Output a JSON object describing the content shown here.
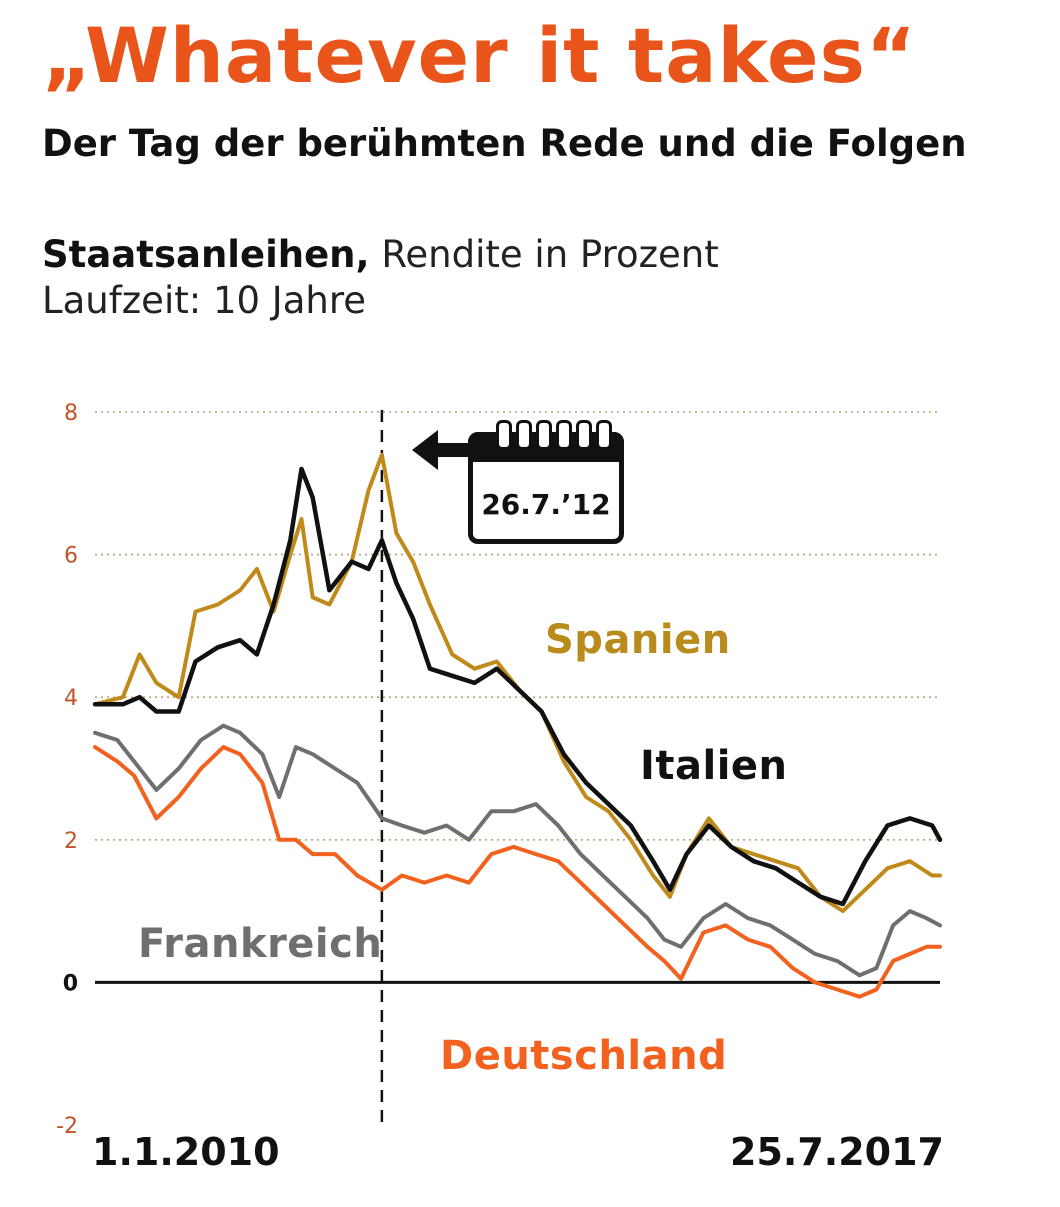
{
  "title": "„Whatever it takes“",
  "subtitle": "Der Tag der berühmten Rede und die Folgen",
  "metric": {
    "bold": "Staatsanleihen,",
    "normal": " Rendite in Prozent",
    "line2": "Laufzeit: 10 Jahre"
  },
  "callout": {
    "date": "26.7.’12",
    "icon": "calendar-icon"
  },
  "colors": {
    "title": "#e8541a",
    "spanien": "#c08a1a",
    "italien": "#111111",
    "frankreich": "#6f6f6f",
    "deutschland": "#f2621e",
    "grid": "#b9a57a"
  },
  "chart_data": {
    "type": "line",
    "title": "Staatsanleihen, Rendite in Prozent",
    "x_start": "1.1.2010",
    "x_end": "25.7.2017",
    "ylim": [
      -2,
      8
    ],
    "yticks": [
      8,
      6,
      4,
      2,
      0,
      -2
    ],
    "grid": true,
    "marker_date": "26.7.’12",
    "marker_x": 2012.57,
    "series": [
      {
        "name": "Spanien",
        "color": "#c08a1a",
        "x": [
          2010.0,
          2010.25,
          2010.4,
          2010.55,
          2010.75,
          2010.9,
          2011.1,
          2011.3,
          2011.45,
          2011.6,
          2011.75,
          2011.85,
          2011.95,
          2012.1,
          2012.3,
          2012.45,
          2012.57,
          2012.7,
          2012.85,
          2013.0,
          2013.2,
          2013.4,
          2013.6,
          2013.8,
          2014.0,
          2014.2,
          2014.4,
          2014.6,
          2014.8,
          2015.0,
          2015.15,
          2015.3,
          2015.5,
          2015.7,
          2015.9,
          2016.1,
          2016.3,
          2016.5,
          2016.7,
          2016.9,
          2017.1,
          2017.3,
          2017.5,
          2017.57
        ],
        "values": [
          3.9,
          4.0,
          4.6,
          4.2,
          4.0,
          5.2,
          5.3,
          5.5,
          5.8,
          5.2,
          6.0,
          6.5,
          5.4,
          5.3,
          5.9,
          6.9,
          7.4,
          6.3,
          5.9,
          5.3,
          4.6,
          4.4,
          4.5,
          4.1,
          3.8,
          3.1,
          2.6,
          2.4,
          2.0,
          1.5,
          1.2,
          1.8,
          2.3,
          1.9,
          1.8,
          1.7,
          1.6,
          1.2,
          1.0,
          1.3,
          1.6,
          1.7,
          1.5,
          1.5
        ]
      },
      {
        "name": "Italien",
        "color": "#111111",
        "x": [
          2010.0,
          2010.25,
          2010.4,
          2010.55,
          2010.75,
          2010.9,
          2011.1,
          2011.3,
          2011.45,
          2011.6,
          2011.75,
          2011.85,
          2011.95,
          2012.1,
          2012.3,
          2012.45,
          2012.57,
          2012.7,
          2012.85,
          2013.0,
          2013.2,
          2013.4,
          2013.6,
          2013.8,
          2014.0,
          2014.2,
          2014.4,
          2014.6,
          2014.8,
          2015.0,
          2015.15,
          2015.3,
          2015.5,
          2015.7,
          2015.9,
          2016.1,
          2016.3,
          2016.5,
          2016.7,
          2016.9,
          2017.1,
          2017.3,
          2017.5,
          2017.57
        ],
        "values": [
          3.9,
          3.9,
          4.0,
          3.8,
          3.8,
          4.5,
          4.7,
          4.8,
          4.6,
          5.3,
          6.2,
          7.2,
          6.8,
          5.5,
          5.9,
          5.8,
          6.2,
          5.6,
          5.1,
          4.4,
          4.3,
          4.2,
          4.4,
          4.1,
          3.8,
          3.2,
          2.8,
          2.5,
          2.2,
          1.7,
          1.3,
          1.8,
          2.2,
          1.9,
          1.7,
          1.6,
          1.4,
          1.2,
          1.1,
          1.7,
          2.2,
          2.3,
          2.2,
          2.0
        ]
      },
      {
        "name": "Frankreich",
        "color": "#6f6f6f",
        "x": [
          2010.0,
          2010.2,
          2010.35,
          2010.55,
          2010.75,
          2010.95,
          2011.15,
          2011.3,
          2011.5,
          2011.65,
          2011.8,
          2011.95,
          2012.15,
          2012.35,
          2012.57,
          2012.75,
          2012.95,
          2013.15,
          2013.35,
          2013.55,
          2013.75,
          2013.95,
          2014.15,
          2014.35,
          2014.55,
          2014.75,
          2014.95,
          2015.1,
          2015.25,
          2015.45,
          2015.65,
          2015.85,
          2016.05,
          2016.25,
          2016.45,
          2016.65,
          2016.85,
          2017.0,
          2017.15,
          2017.3,
          2017.45,
          2017.57
        ],
        "values": [
          3.5,
          3.4,
          3.1,
          2.7,
          3.0,
          3.4,
          3.6,
          3.5,
          3.2,
          2.6,
          3.3,
          3.2,
          3.0,
          2.8,
          2.3,
          2.2,
          2.1,
          2.2,
          2.0,
          2.4,
          2.4,
          2.5,
          2.2,
          1.8,
          1.5,
          1.2,
          0.9,
          0.6,
          0.5,
          0.9,
          1.1,
          0.9,
          0.8,
          0.6,
          0.4,
          0.3,
          0.1,
          0.2,
          0.8,
          1.0,
          0.9,
          0.8
        ]
      },
      {
        "name": "Deutschland",
        "color": "#f2621e",
        "x": [
          2010.0,
          2010.2,
          2010.35,
          2010.55,
          2010.75,
          2010.95,
          2011.15,
          2011.3,
          2011.5,
          2011.65,
          2011.8,
          2011.95,
          2012.15,
          2012.35,
          2012.57,
          2012.75,
          2012.95,
          2013.15,
          2013.35,
          2013.55,
          2013.75,
          2013.95,
          2014.15,
          2014.35,
          2014.55,
          2014.75,
          2014.95,
          2015.1,
          2015.25,
          2015.45,
          2015.65,
          2015.85,
          2016.05,
          2016.25,
          2016.45,
          2016.65,
          2016.85,
          2017.0,
          2017.15,
          2017.3,
          2017.45,
          2017.57
        ],
        "values": [
          3.3,
          3.1,
          2.9,
          2.3,
          2.6,
          3.0,
          3.3,
          3.2,
          2.8,
          2.0,
          2.0,
          1.8,
          1.8,
          1.5,
          1.3,
          1.5,
          1.4,
          1.5,
          1.4,
          1.8,
          1.9,
          1.8,
          1.7,
          1.4,
          1.1,
          0.8,
          0.5,
          0.3,
          0.05,
          0.7,
          0.8,
          0.6,
          0.5,
          0.2,
          0.0,
          -0.1,
          -0.2,
          -0.1,
          0.3,
          0.4,
          0.5,
          0.5
        ]
      }
    ]
  }
}
